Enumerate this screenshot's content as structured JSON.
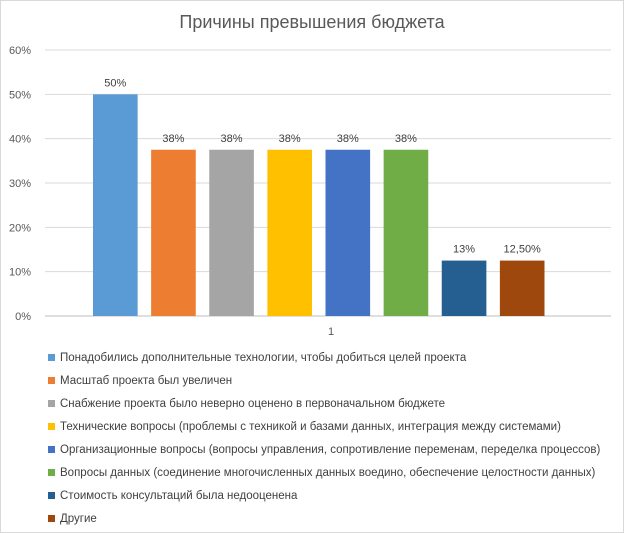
{
  "chart_data": {
    "type": "bar",
    "title": "Причины превышения бюджета",
    "xlabel": "",
    "ylabel": "",
    "categories": [
      "1"
    ],
    "ylim": [
      0,
      0.6
    ],
    "yticks": [
      "0%",
      "10%",
      "20%",
      "30%",
      "40%",
      "50%",
      "60%"
    ],
    "grid": true,
    "legend_position": "bottom",
    "series": [
      {
        "name": "Понадобились дополнительные технологии, чтобы добиться целей проекта",
        "value": 0.5,
        "label": "50%",
        "color": "#5b9bd5"
      },
      {
        "name": "Масштаб проекта был увеличен",
        "value": 0.375,
        "label": "38%",
        "color": "#ed7d31"
      },
      {
        "name": "Снабжение проекта было неверно оценено в первоначальном бюджете",
        "value": 0.375,
        "label": "38%",
        "color": "#a5a5a5"
      },
      {
        "name": "Технические вопросы (проблемы с техникой и базами данных, интеграция между системами)",
        "value": 0.375,
        "label": "38%",
        "color": "#ffc000"
      },
      {
        "name": "Организационные вопросы (вопросы управления, сопротивление переменам, переделка процессов)",
        "value": 0.375,
        "label": "38%",
        "color": "#4472c4"
      },
      {
        "name": "Вопросы данных (соединение многочисленных данных воедино, обеспечение целостности данных)",
        "value": 0.375,
        "label": "38%",
        "color": "#70ad47"
      },
      {
        "name": "Стоимость консультаций была недооценена",
        "value": 0.125,
        "label": "13%",
        "color": "#255e91"
      },
      {
        "name": "Другие",
        "value": 0.125,
        "label": "12,50%",
        "color": "#9e480e"
      }
    ]
  }
}
